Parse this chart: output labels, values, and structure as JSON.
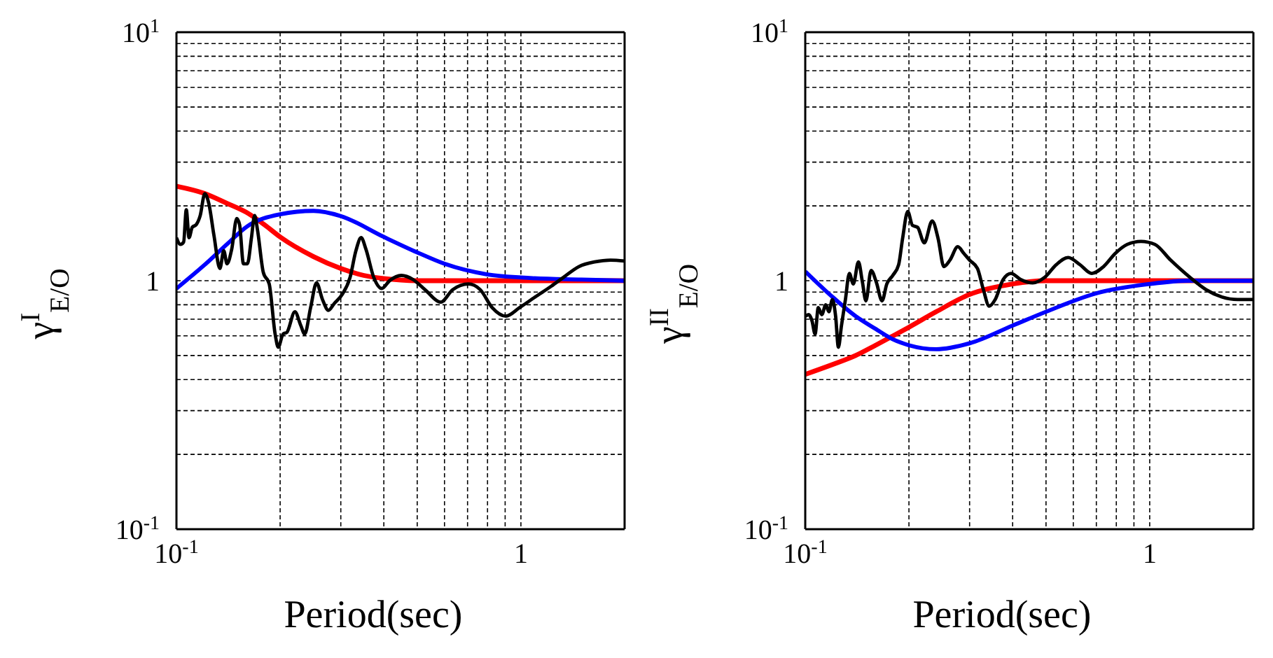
{
  "chart_data": [
    {
      "type": "line",
      "xlabel": "Period(sec)",
      "ylabel": "γ$^{I}$$_{E/O}$",
      "log": "xy",
      "grid": true,
      "xlim": [
        0.1,
        2
      ],
      "ylim": [
        0.1,
        10
      ],
      "xticks": [
        {
          "value": 0.1,
          "label": "10$^{-1}$"
        },
        {
          "value": 0.2,
          "label": null
        },
        {
          "value": 0.3,
          "label": null
        },
        {
          "value": 0.4,
          "label": null
        },
        {
          "value": 0.5,
          "label": null
        },
        {
          "value": 0.6,
          "label": null
        },
        {
          "value": 0.7,
          "label": null
        },
        {
          "value": 0.8,
          "label": null
        },
        {
          "value": 0.9,
          "label": null
        },
        1
      ],
      "yticks": [
        {
          "value": 0.1,
          "label": "10$^{-1}$"
        },
        {
          "value": 0.2,
          "label": null
        },
        {
          "value": 0.3,
          "label": null
        },
        {
          "value": 0.4,
          "label": null
        },
        {
          "value": 0.5,
          "label": null
        },
        {
          "value": 0.6,
          "label": null
        },
        {
          "value": 0.7,
          "label": null
        },
        {
          "value": 0.8,
          "label": null
        },
        {
          "value": 0.9,
          "label": null
        },
        1,
        {
          "value": 2,
          "label": null
        },
        {
          "value": 3,
          "label": null
        },
        {
          "value": 4,
          "label": null
        },
        {
          "value": 5,
          "label": null
        },
        {
          "value": 6,
          "label": null
        },
        {
          "value": 7,
          "label": null
        },
        {
          "value": 8,
          "label": null
        },
        {
          "value": 9,
          "label": null
        },
        {
          "value": 10,
          "label": "10$^{1}$"
        }
      ],
      "series": [
        {
          "color": "#ff0000",
          "x": [
            0.1,
            0.12,
            0.14,
            0.16,
            0.18,
            0.2,
            0.25,
            0.3,
            0.35,
            0.4,
            0.5,
            1,
            2
          ],
          "values": [
            2.4,
            2.25,
            2.05,
            1.88,
            1.68,
            1.5,
            1.25,
            1.12,
            1.05,
            1.02,
            1.0,
            1.0,
            1.0
          ]
        },
        {
          "color": "#0000ff",
          "x": [
            0.1,
            0.12,
            0.14,
            0.16,
            0.2,
            0.25,
            0.3,
            0.4,
            0.5,
            0.6,
            0.8,
            1,
            1.5,
            2
          ],
          "values": [
            0.93,
            1.15,
            1.4,
            1.65,
            1.85,
            1.91,
            1.82,
            1.5,
            1.3,
            1.17,
            1.06,
            1.03,
            1.01,
            1.0
          ]
        },
        {
          "color": "#000000",
          "x": [
            0.1,
            0.1027,
            0.1049,
            0.1068,
            0.1088,
            0.1111,
            0.1141,
            0.1171,
            0.1209,
            0.1241,
            0.1285,
            0.1337,
            0.1372,
            0.1402,
            0.1447,
            0.1497,
            0.1525,
            0.1565,
            0.1607,
            0.1651,
            0.1686,
            0.1718,
            0.1787,
            0.1859,
            0.1934,
            0.1975,
            0.2039,
            0.2093,
            0.2207,
            0.2296,
            0.2357,
            0.2452,
            0.2551,
            0.2654,
            0.2761,
            0.2872,
            0.3027,
            0.3191,
            0.3319,
            0.3436,
            0.3548,
            0.374,
            0.3943,
            0.4156,
            0.4497,
            0.4868,
            0.5268,
            0.5854,
            0.6337,
            0.7041,
            0.7621,
            0.8249,
            0.9048,
            0.9922,
            1.1,
            1.225,
            1.327,
            1.474,
            1.637,
            1.82,
            2.0
          ],
          "values": [
            1.49,
            1.4,
            1.43,
            1.93,
            1.49,
            1.64,
            1.68,
            1.82,
            2.24,
            2.05,
            1.52,
            1.12,
            1.32,
            1.17,
            1.34,
            1.78,
            1.68,
            1.17,
            1.17,
            1.49,
            1.83,
            1.61,
            1.08,
            0.97,
            0.61,
            0.54,
            0.61,
            0.62,
            0.75,
            0.66,
            0.61,
            0.78,
            0.98,
            0.84,
            0.76,
            0.81,
            0.88,
            1.03,
            1.32,
            1.49,
            1.34,
            1.03,
            0.93,
            1.0,
            1.05,
            1.01,
            0.92,
            0.82,
            0.92,
            0.97,
            0.92,
            0.78,
            0.72,
            0.78,
            0.86,
            0.95,
            1.03,
            1.14,
            1.19,
            1.21,
            1.2
          ]
        }
      ]
    },
    {
      "type": "line",
      "xlabel": "Period(sec)",
      "ylabel": "γ$^{II}$$_{E/O}$",
      "log": "xy",
      "grid": true,
      "xlim": [
        0.1,
        2
      ],
      "ylim": [
        0.1,
        10
      ],
      "xticks": [
        {
          "value": 0.1,
          "label": "10$^{-1}$"
        },
        {
          "value": 0.2,
          "label": null
        },
        {
          "value": 0.3,
          "label": null
        },
        {
          "value": 0.4,
          "label": null
        },
        {
          "value": 0.5,
          "label": null
        },
        {
          "value": 0.6,
          "label": null
        },
        {
          "value": 0.7,
          "label": null
        },
        {
          "value": 0.8,
          "label": null
        },
        {
          "value": 0.9,
          "label": null
        },
        1
      ],
      "yticks": [
        {
          "value": 0.1,
          "label": "10$^{-1}$"
        },
        {
          "value": 0.2,
          "label": null
        },
        {
          "value": 0.3,
          "label": null
        },
        {
          "value": 0.4,
          "label": null
        },
        {
          "value": 0.5,
          "label": null
        },
        {
          "value": 0.6,
          "label": null
        },
        {
          "value": 0.7,
          "label": null
        },
        {
          "value": 0.8,
          "label": null
        },
        {
          "value": 0.9,
          "label": null
        },
        1,
        {
          "value": 2,
          "label": null
        },
        {
          "value": 3,
          "label": null
        },
        {
          "value": 4,
          "label": null
        },
        {
          "value": 5,
          "label": null
        },
        {
          "value": 6,
          "label": null
        },
        {
          "value": 7,
          "label": null
        },
        {
          "value": 8,
          "label": null
        },
        {
          "value": 9,
          "label": null
        },
        {
          "value": 10,
          "label": "10$^{1}$"
        }
      ],
      "series": [
        {
          "color": "#ff0000",
          "x": [
            0.1,
            0.12,
            0.14,
            0.16,
            0.18,
            0.2,
            0.24,
            0.3,
            0.4,
            0.5,
            1,
            2
          ],
          "values": [
            0.42,
            0.46,
            0.5,
            0.55,
            0.6,
            0.65,
            0.75,
            0.88,
            0.97,
            1.0,
            1.0,
            1.0
          ]
        },
        {
          "color": "#0000ff",
          "x": [
            0.1,
            0.12,
            0.14,
            0.16,
            0.18,
            0.2,
            0.24,
            0.3,
            0.4,
            0.5,
            0.7,
            1,
            1.3,
            2
          ],
          "values": [
            1.09,
            0.86,
            0.72,
            0.64,
            0.58,
            0.55,
            0.53,
            0.56,
            0.66,
            0.75,
            0.89,
            0.97,
            1.0,
            1.0
          ]
        },
        {
          "color": "#000000",
          "x": [
            0.1,
            0.1024,
            0.1046,
            0.1068,
            0.1091,
            0.1117,
            0.1147,
            0.1171,
            0.1199,
            0.1225,
            0.1248,
            0.1274,
            0.1308,
            0.1343,
            0.1379,
            0.1427,
            0.1465,
            0.15,
            0.1553,
            0.1607,
            0.1671,
            0.1725,
            0.1795,
            0.1867,
            0.1917,
            0.1984,
            0.2047,
            0.2119,
            0.2216,
            0.2336,
            0.243,
            0.2526,
            0.263,
            0.2773,
            0.2884,
            0.3,
            0.3162,
            0.329,
            0.342,
            0.356,
            0.3752,
            0.3956,
            0.4226,
            0.4573,
            0.4949,
            0.5355,
            0.5798,
            0.6275,
            0.6788,
            0.7346,
            0.7953,
            0.8607,
            0.9437,
            1.035,
            1.15,
            1.31,
            1.458,
            1.62,
            1.8,
            2.0
          ],
          "values": [
            0.72,
            0.73,
            0.69,
            0.61,
            0.78,
            0.73,
            0.8,
            0.75,
            0.84,
            0.72,
            0.54,
            0.66,
            0.84,
            1.07,
            0.97,
            1.19,
            0.99,
            0.83,
            1.1,
            0.99,
            0.83,
            0.97,
            1.05,
            1.16,
            1.48,
            1.9,
            1.67,
            1.64,
            1.42,
            1.74,
            1.48,
            1.14,
            1.21,
            1.37,
            1.29,
            1.21,
            1.12,
            0.92,
            0.79,
            0.84,
            1.01,
            1.07,
            1.01,
            0.98,
            1.03,
            1.16,
            1.24,
            1.16,
            1.07,
            1.14,
            1.29,
            1.4,
            1.44,
            1.4,
            1.21,
            1.03,
            0.92,
            0.86,
            0.84,
            0.84
          ]
        }
      ]
    }
  ]
}
